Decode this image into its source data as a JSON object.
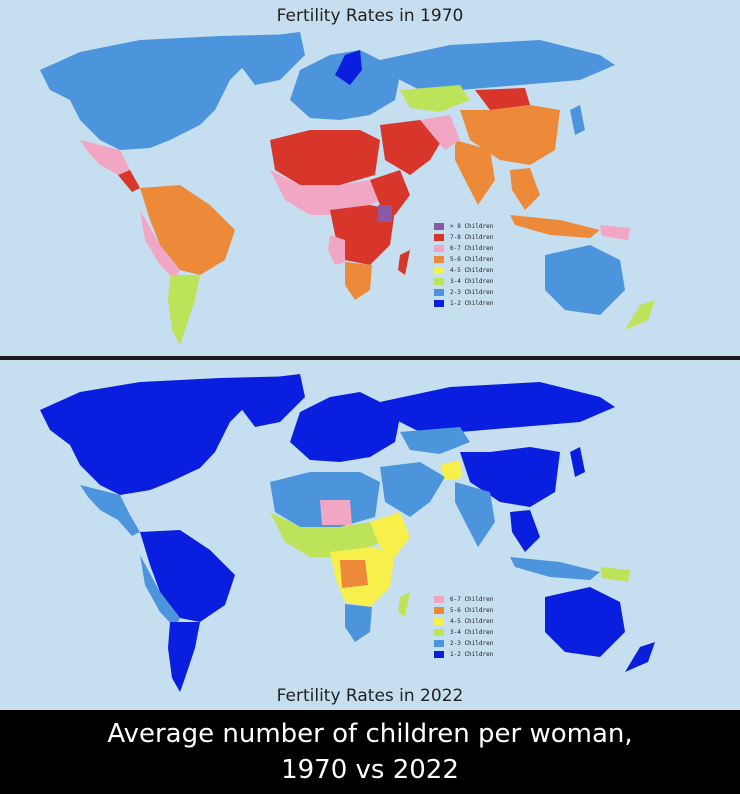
{
  "colors": {
    "ocean": "#c6dff0",
    "gt8": "#8a5aa8",
    "c7_8": "#d9362b",
    "c6_7": "#f1a7c4",
    "c5_6": "#ec8a3a",
    "c4_5": "#f7ef4a",
    "c3_4": "#bde35a",
    "c2_3": "#4c95dd",
    "c1_2": "#0a1ee0"
  },
  "map_1970": {
    "title": "Fertility Rates in 1970",
    "legend": [
      {
        "label": "> 8 Children",
        "color": "#8a5aa8"
      },
      {
        "label": "7-8 Children",
        "color": "#d9362b"
      },
      {
        "label": "6-7 Children",
        "color": "#f1a7c4"
      },
      {
        "label": "5-6 Children",
        "color": "#ec8a3a"
      },
      {
        "label": "4-5 Children",
        "color": "#f7ef4a"
      },
      {
        "label": "3-4 Children",
        "color": "#bde35a"
      },
      {
        "label": "2-3 Children",
        "color": "#4c95dd"
      },
      {
        "label": "1-2 Children",
        "color": "#0a1ee0"
      }
    ]
  },
  "map_2022": {
    "title": "Fertility Rates in 2022",
    "legend": [
      {
        "label": "6-7 Children",
        "color": "#f1a7c4"
      },
      {
        "label": "5-6 Children",
        "color": "#ec8a3a"
      },
      {
        "label": "4-5 Children",
        "color": "#f7ef4a"
      },
      {
        "label": "3-4 Children",
        "color": "#bde35a"
      },
      {
        "label": "2-3 Children",
        "color": "#4c95dd"
      },
      {
        "label": "1-2 Children",
        "color": "#0a1ee0"
      }
    ]
  },
  "caption": {
    "line1": "Average number of children per woman,",
    "line2": "1970 vs 2022"
  }
}
